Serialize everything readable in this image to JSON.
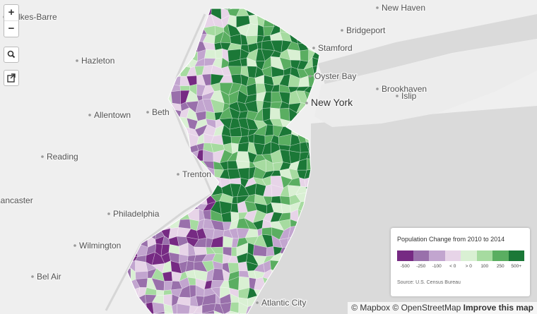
{
  "controls": {
    "zoom_in": "+",
    "zoom_out": "−"
  },
  "places": [
    {
      "name": "New Haven"
    },
    {
      "name": "Wilkes-Barre"
    },
    {
      "name": "Bridgeport"
    },
    {
      "name": "Stamford"
    },
    {
      "name": "Hazleton"
    },
    {
      "name": "Oyster Bay"
    },
    {
      "name": "Brookhaven"
    },
    {
      "name": "Islip"
    },
    {
      "name": "New York"
    },
    {
      "name": "Allentown"
    },
    {
      "name": "Beth"
    },
    {
      "name": "Reading"
    },
    {
      "name": "Trenton"
    },
    {
      "name": "Lancaster"
    },
    {
      "name": "Philadelphia"
    },
    {
      "name": "Wilmington"
    },
    {
      "name": "Bel Air"
    },
    {
      "name": "Atlantic City"
    }
  ],
  "legend": {
    "title": "Population Change from 2010 to 2014",
    "bins": [
      {
        "label": "-500",
        "color": "#762a83"
      },
      {
        "label": "-250",
        "color": "#9970ab"
      },
      {
        "label": "-100",
        "color": "#c2a5cf"
      },
      {
        "label": "< 0",
        "color": "#e7d4e8"
      },
      {
        "label": "> 0",
        "color": "#d9f0d3"
      },
      {
        "label": "100",
        "color": "#a6dba0"
      },
      {
        "label": "250",
        "color": "#5aae61"
      },
      {
        "label": "500+",
        "color": "#1b7837"
      }
    ],
    "source": "Source: U.S. Census Bureau"
  },
  "attribution": {
    "mapbox": "© Mapbox",
    "osm": "© OpenStreetMap",
    "improve": "Improve this map"
  }
}
